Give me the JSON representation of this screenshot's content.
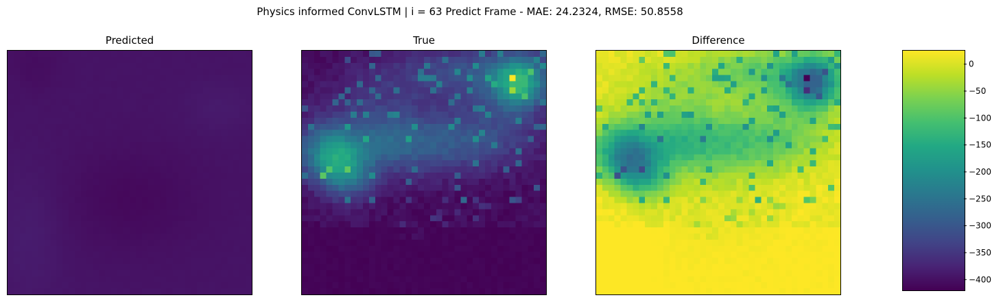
{
  "suptitle": "Physics informed ConvLSTM | i = 63 Predict Frame - MAE: 24.2324, RMSE: 50.8558",
  "panels": [
    {
      "title": "Predicted"
    },
    {
      "title": "True"
    },
    {
      "title": "Difference"
    }
  ],
  "chart_data": {
    "type": "heatmap",
    "title": "Physics informed ConvLSTM | i = 63 Predict Frame - MAE: 24.2324, RMSE: 50.8558",
    "subplots": [
      "Predicted",
      "True",
      "Difference"
    ],
    "colormap": "viridis",
    "grid_size": [
      40,
      40
    ],
    "colorbar": {
      "range": [
        -420,
        25
      ],
      "ticks": [
        0,
        -50,
        -100,
        -150,
        -200,
        -250,
        -300,
        -350,
        -400
      ],
      "tick_labels": [
        "0",
        "−50",
        "−100",
        "−150",
        "−200",
        "−250",
        "−300",
        "−350",
        "−400"
      ]
    },
    "axes_ticks": false
  }
}
